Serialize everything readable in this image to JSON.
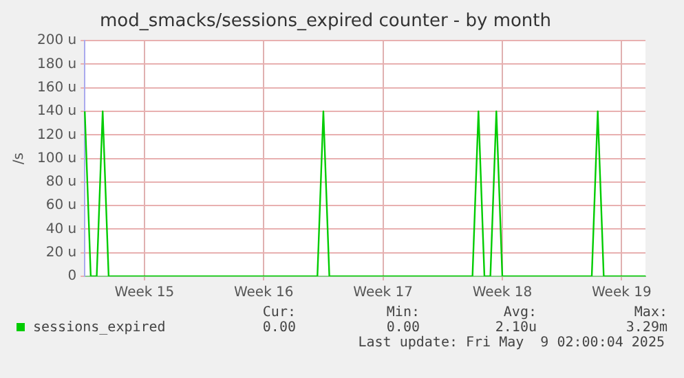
{
  "chart_data": {
    "type": "line",
    "title": "mod_smacks/sessions_expired counter - by month",
    "ylabel": "/s",
    "categories": [
      null,
      null,
      null,
      null,
      null,
      null,
      null,
      null,
      null,
      null,
      "Week 15",
      null,
      null,
      null,
      null,
      null,
      null,
      null,
      null,
      null,
      null,
      null,
      null,
      null,
      null,
      null,
      null,
      null,
      null,
      null,
      "Week 16",
      null,
      null,
      null,
      null,
      null,
      null,
      null,
      null,
      null,
      null,
      null,
      null,
      null,
      null,
      null,
      null,
      null,
      null,
      null,
      "Week 17",
      null,
      null,
      null,
      null,
      null,
      null,
      null,
      null,
      null,
      null,
      null,
      null,
      null,
      null,
      null,
      null,
      null,
      null,
      null,
      "Week 18",
      null,
      null,
      null,
      null,
      null,
      null,
      null,
      null,
      null,
      null,
      null,
      null,
      null,
      null,
      null,
      null,
      null,
      null,
      null,
      "Week 19",
      null,
      null,
      null,
      null
    ],
    "series": [
      {
        "name": "sessions_expired",
        "color": "#00cc00",
        "values": [
          140,
          0,
          0,
          140,
          0,
          0,
          0,
          0,
          0,
          0,
          0,
          0,
          0,
          0,
          0,
          0,
          0,
          0,
          0,
          0,
          0,
          0,
          0,
          0,
          0,
          0,
          0,
          0,
          0,
          0,
          0,
          0,
          0,
          0,
          0,
          0,
          0,
          0,
          0,
          0,
          140,
          0,
          0,
          0,
          0,
          0,
          0,
          0,
          0,
          0,
          0,
          0,
          0,
          0,
          0,
          0,
          0,
          0,
          0,
          0,
          0,
          0,
          0,
          0,
          0,
          0,
          140,
          0,
          0,
          140,
          0,
          0,
          0,
          0,
          0,
          0,
          0,
          0,
          0,
          0,
          0,
          0,
          0,
          0,
          0,
          0,
          140,
          0,
          0,
          0,
          0,
          0,
          0,
          0,
          0
        ]
      }
    ],
    "ylim": [
      0,
      200
    ],
    "yticks": [
      0,
      {
        "value": 20,
        "label": "20 u"
      },
      {
        "value": 40,
        "label": "40 u"
      },
      {
        "value": 60,
        "label": "60 u"
      },
      {
        "value": 80,
        "label": "80 u"
      },
      {
        "value": 100,
        "label": "100 u"
      },
      {
        "value": 120,
        "label": "120 u"
      },
      {
        "value": 140,
        "label": "140 u"
      },
      {
        "value": 160,
        "label": "160 u"
      },
      {
        "value": 180,
        "label": "180 u"
      },
      {
        "value": 200,
        "label": "200 u"
      }
    ],
    "grid": true,
    "legend": "bottom left",
    "marker": "none",
    "line_style": "solid",
    "annotations": [
      "Cur:",
      "Min:",
      "Avg:",
      "Max:",
      "0.00",
      "0.00",
      "2.10u",
      "3.29m",
      "Last update: Fri May  9 02:00:04 2025"
    ]
  }
}
